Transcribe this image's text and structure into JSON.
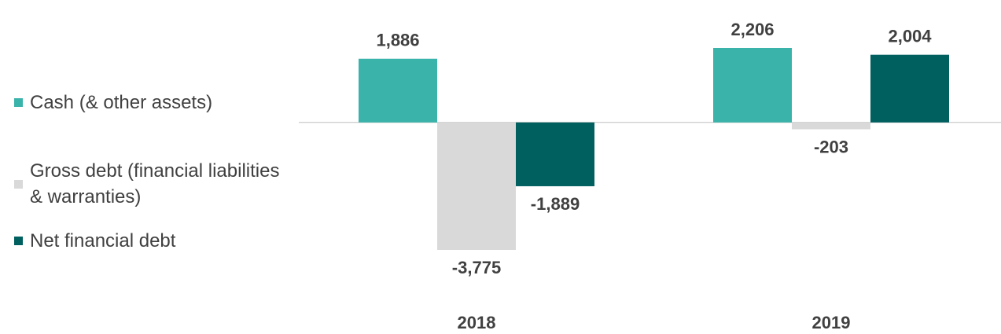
{
  "chart_data": {
    "type": "bar",
    "categories": [
      "2018",
      "2019"
    ],
    "series": [
      {
        "name": "Cash (& other assets)",
        "color": "#3ab3aa",
        "values": [
          1886,
          2206
        ],
        "value_labels": [
          "1,886",
          "2,206"
        ]
      },
      {
        "name": "Gross debt (financial liabilities & warranties)",
        "color": "#d9d9d9",
        "values": [
          -3775,
          -203
        ],
        "value_labels": [
          "-3,775",
          "-203"
        ]
      },
      {
        "name": "Net financial debt",
        "color": "#005f5f",
        "values": [
          -1889,
          2004
        ],
        "value_labels": [
          "-1,889",
          "2,004"
        ]
      }
    ]
  }
}
